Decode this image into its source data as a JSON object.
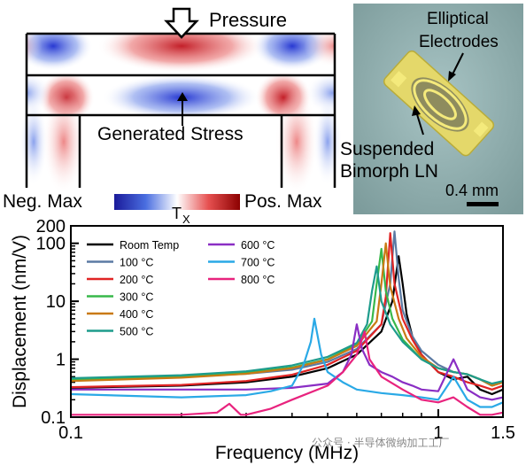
{
  "simulation": {
    "pressure_label": "Pressure",
    "stress_label": "Generated Stress",
    "colorbar": {
      "neg_label": "Neg. Max",
      "pos_label": "Pos. Max",
      "symbol": "T",
      "subscript": "X",
      "colors": [
        "#1a1a9a",
        "#4a6ee0",
        "#ffffff",
        "#e65050",
        "#8c0000"
      ]
    }
  },
  "photo": {
    "electrodes_label_line1": "Elliptical",
    "electrodes_label_line2": "Electrodes",
    "bimorph_label_line1": "Suspended",
    "bimorph_label_line2": "Bimorph LN",
    "scale_label": "0.4 mm",
    "background_color": "#98b5b5"
  },
  "watermark": "公众号 · 半导体微纳加工工厂",
  "chart_data": {
    "type": "line",
    "xlabel": "Frequency (MHz)",
    "ylabel": "Displacement (nm/V)",
    "xscale": "log",
    "yscale": "log",
    "xlim": [
      0.1,
      1.5
    ],
    "ylim": [
      0.1,
      200
    ],
    "x_ticks": [
      0.1,
      1,
      1.5
    ],
    "x_tick_labels": [
      "0.1",
      "1",
      "1.5"
    ],
    "y_ticks": [
      0.1,
      1,
      10,
      100,
      200
    ],
    "y_tick_labels": [
      "0.1",
      "1",
      "10",
      "100",
      "200"
    ],
    "legend_position": "top-left",
    "series": [
      {
        "name": "Room Temp",
        "color": "#000000",
        "x": [
          0.1,
          0.2,
          0.3,
          0.4,
          0.5,
          0.6,
          0.7,
          0.75,
          0.78,
          0.8,
          0.82,
          0.85,
          0.9,
          1.0,
          1.1,
          1.2,
          1.3,
          1.4,
          1.5
        ],
        "y": [
          0.32,
          0.35,
          0.4,
          0.5,
          0.7,
          1.2,
          3.0,
          10,
          60,
          20,
          6,
          2.5,
          1.2,
          0.6,
          0.45,
          0.5,
          0.3,
          0.25,
          0.3
        ]
      },
      {
        "name": "100 °C",
        "color": "#5b7aa3",
        "x": [
          0.1,
          0.2,
          0.3,
          0.4,
          0.5,
          0.6,
          0.7,
          0.74,
          0.76,
          0.78,
          0.8,
          0.85,
          0.9,
          1.0,
          1.1,
          1.2,
          1.3,
          1.4,
          1.5
        ],
        "y": [
          0.45,
          0.5,
          0.56,
          0.66,
          0.9,
          1.5,
          4.0,
          20,
          160,
          25,
          7,
          2.5,
          1.4,
          0.8,
          0.6,
          0.55,
          0.45,
          0.35,
          0.4
        ]
      },
      {
        "name": "200 °C",
        "color": "#e02424",
        "x": [
          0.1,
          0.2,
          0.3,
          0.4,
          0.5,
          0.6,
          0.7,
          0.72,
          0.74,
          0.76,
          0.8,
          0.85,
          0.9,
          1.0,
          1.1,
          1.2,
          1.3,
          1.4,
          1.5
        ],
        "y": [
          0.33,
          0.36,
          0.42,
          0.54,
          0.8,
          1.4,
          4.0,
          12,
          150,
          20,
          5,
          2.2,
          1.2,
          0.6,
          0.5,
          0.4,
          0.35,
          0.3,
          0.35
        ]
      },
      {
        "name": "300 °C",
        "color": "#38b84a",
        "x": [
          0.1,
          0.2,
          0.3,
          0.4,
          0.5,
          0.6,
          0.66,
          0.68,
          0.7,
          0.72,
          0.75,
          0.8,
          0.9,
          1.0,
          1.1,
          1.2,
          1.3,
          1.4,
          1.5
        ],
        "y": [
          0.44,
          0.5,
          0.58,
          0.72,
          1.0,
          1.8,
          4.5,
          20,
          80,
          15,
          5,
          2.2,
          1.0,
          0.7,
          0.6,
          0.55,
          0.45,
          0.35,
          0.4
        ]
      },
      {
        "name": "400 °C",
        "color": "#c97a14",
        "x": [
          0.1,
          0.2,
          0.3,
          0.4,
          0.5,
          0.6,
          0.68,
          0.7,
          0.72,
          0.74,
          0.78,
          0.82,
          0.9,
          1.0,
          1.1,
          1.2,
          1.3,
          1.4,
          1.5
        ],
        "y": [
          0.42,
          0.48,
          0.56,
          0.7,
          0.98,
          1.7,
          4.5,
          20,
          100,
          18,
          5,
          2.3,
          1.1,
          0.7,
          0.6,
          0.55,
          0.45,
          0.35,
          0.4
        ]
      },
      {
        "name": "500 °C",
        "color": "#1e9c8c",
        "x": [
          0.1,
          0.2,
          0.3,
          0.4,
          0.5,
          0.6,
          0.64,
          0.66,
          0.68,
          0.7,
          0.74,
          0.8,
          0.9,
          1.0,
          1.1,
          1.2,
          1.3,
          1.4,
          1.5
        ],
        "y": [
          0.47,
          0.53,
          0.62,
          0.78,
          1.1,
          1.9,
          4.0,
          15,
          40,
          10,
          4,
          2.0,
          1.0,
          0.7,
          0.6,
          0.55,
          0.45,
          0.38,
          0.42
        ]
      },
      {
        "name": "600 °C",
        "color": "#8a2ec4",
        "x": [
          0.1,
          0.2,
          0.3,
          0.4,
          0.5,
          0.55,
          0.58,
          0.6,
          0.62,
          0.65,
          0.7,
          0.75,
          0.8,
          0.85,
          0.9,
          1.0,
          1.1,
          1.2,
          1.3,
          1.4,
          1.5
        ],
        "y": [
          0.3,
          0.3,
          0.3,
          0.32,
          0.38,
          0.6,
          1.2,
          4.0,
          1.5,
          0.8,
          0.6,
          0.5,
          0.4,
          0.35,
          0.3,
          0.28,
          1.0,
          0.3,
          0.22,
          0.2,
          0.22
        ]
      },
      {
        "name": "700 °C",
        "color": "#2aa9e6",
        "x": [
          0.1,
          0.2,
          0.3,
          0.35,
          0.4,
          0.43,
          0.45,
          0.46,
          0.48,
          0.5,
          0.55,
          0.6,
          0.7,
          0.8,
          0.9,
          1.0,
          1.1,
          1.2,
          1.3,
          1.4,
          1.5
        ],
        "y": [
          0.25,
          0.22,
          0.24,
          0.28,
          0.35,
          0.8,
          2.0,
          5.0,
          1.2,
          0.6,
          0.4,
          0.3,
          0.26,
          0.24,
          0.22,
          0.2,
          0.5,
          0.2,
          0.15,
          0.15,
          0.18
        ]
      },
      {
        "name": "800 °C",
        "color": "#e8237e",
        "x": [
          0.1,
          0.2,
          0.25,
          0.27,
          0.29,
          0.3,
          0.35,
          0.4,
          0.5,
          0.55,
          0.6,
          0.63,
          0.65,
          0.7,
          0.8,
          0.9,
          1.0,
          1.1,
          1.2,
          1.3,
          1.4,
          1.5
        ],
        "y": [
          0.11,
          0.11,
          0.12,
          0.17,
          0.11,
          0.11,
          0.14,
          0.2,
          0.35,
          0.6,
          1.2,
          3.0,
          1.0,
          0.5,
          0.3,
          0.2,
          0.18,
          0.22,
          0.15,
          0.11,
          0.11,
          0.12
        ]
      }
    ]
  }
}
